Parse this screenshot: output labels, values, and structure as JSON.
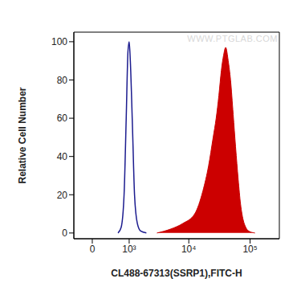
{
  "chart_data": {
    "type": "histogram",
    "x_label": "CL488-67313(SSRP1),FITC-H",
    "y_label": "Relative Cell Number",
    "annotations": [
      "WWW.PTGLAB.COM"
    ],
    "log": "x",
    "xlim": [
      -400,
      300000
    ],
    "xticks": [
      0,
      {
        "value": 1000,
        "label": "10³"
      },
      {
        "value": 10000,
        "label": "10⁴"
      },
      {
        "value": 100000,
        "label": "10⁵"
      }
    ],
    "ylim": [
      -3,
      105
    ],
    "yticks": [
      0,
      20,
      40,
      60,
      80,
      100
    ],
    "x": [
      600,
      700,
      800,
      880,
      950,
      1000,
      1050,
      1150,
      1250,
      1400,
      1600,
      2000,
      3000,
      5000,
      8000,
      12500,
      17000,
      21000,
      25000,
      28000,
      31000,
      34000,
      37000,
      40000,
      44000,
      48000,
      53000,
      58000,
      64000,
      70000,
      77000,
      85000,
      95000,
      120000
    ],
    "series": [
      {
        "type": "line",
        "color": "#1c1c8f",
        "values": [
          0,
          3,
          20,
          60,
          95,
          100,
          90,
          55,
          20,
          5,
          1,
          0,
          null,
          null,
          null,
          null,
          null,
          null,
          null,
          null,
          null,
          null,
          null,
          null,
          null,
          null,
          null,
          null,
          null,
          null,
          null,
          null,
          null,
          null
        ]
      },
      {
        "type": "area",
        "color": "#cc0000",
        "values": [
          null,
          null,
          null,
          null,
          null,
          null,
          null,
          null,
          null,
          null,
          null,
          null,
          0,
          2,
          5,
          10,
          22,
          35,
          50,
          60,
          72,
          85,
          93,
          97,
          90,
          80,
          62,
          45,
          28,
          15,
          7,
          3,
          1,
          0
        ]
      }
    ]
  }
}
